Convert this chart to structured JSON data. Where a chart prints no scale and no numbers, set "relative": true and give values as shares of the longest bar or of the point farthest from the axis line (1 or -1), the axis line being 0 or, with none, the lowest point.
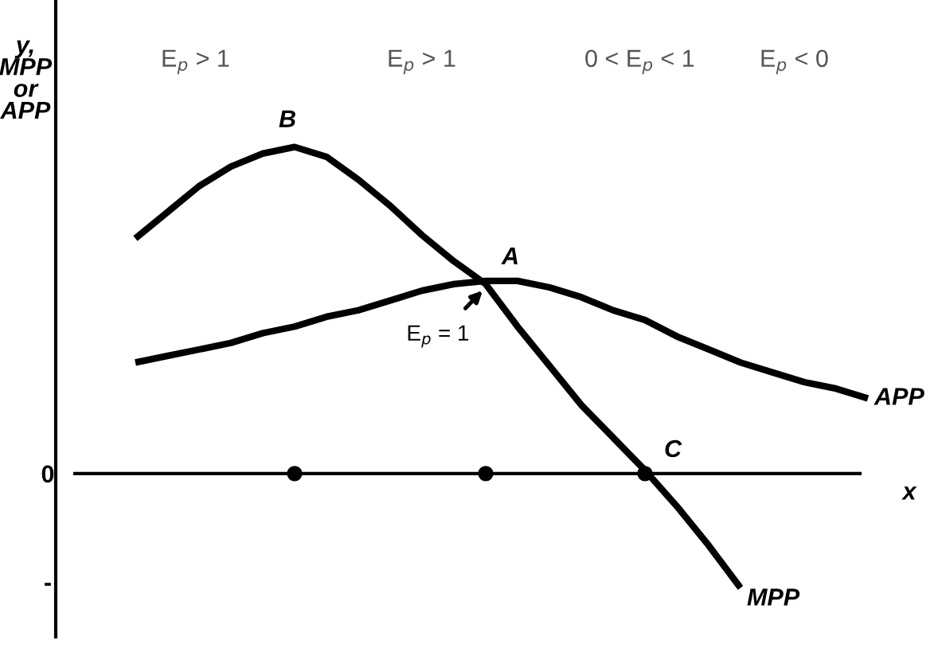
{
  "chart_data": {
    "type": "line",
    "relative": true,
    "xlabel": "x",
    "ylabel": "y,\nMPP\nor\nAPP",
    "legend": false,
    "categories": [
      null,
      null,
      null,
      null,
      null,
      null,
      null,
      null,
      null,
      null,
      null,
      null,
      null,
      null,
      null,
      null,
      null,
      null,
      null,
      null,
      null,
      null,
      null,
      null
    ],
    "series": [
      {
        "name": "MPP",
        "color": "#000000",
        "values": [
          0.72,
          0.8,
          0.88,
          0.94,
          0.98,
          1,
          0.97,
          0.9,
          0.82,
          0.73,
          0.65,
          0.58,
          0.45,
          0.33,
          0.21,
          0.11,
          0.01,
          -0.1,
          -0.22,
          -0.35,
          null,
          null,
          null,
          null
        ]
      },
      {
        "name": "APP",
        "color": "#000000",
        "values": [
          0.34,
          0.36,
          0.38,
          0.4,
          0.43,
          0.45,
          0.48,
          0.5,
          0.53,
          0.56,
          0.58,
          0.59,
          0.59,
          0.57,
          0.54,
          0.5,
          0.47,
          0.42,
          0.38,
          0.34,
          0.31,
          0.28,
          0.26,
          0.23
        ]
      },
      {
        "color": "#000000",
        "marker": "circle",
        "values": [
          null,
          null,
          null,
          null,
          null,
          0,
          null,
          null,
          null,
          null,
          null,
          0,
          null,
          null,
          null,
          null,
          0,
          null,
          null,
          null,
          null,
          null,
          null,
          null
        ]
      }
    ],
    "annotations": [
      "0",
      "-",
      "B",
      "A",
      "C",
      "E$_{p}$ > 1",
      "E$_{p}$ > 1",
      "0 < E$_{p}$ < 1",
      "E$_{p}$ < 0",
      "E$_{p}$ = 1"
    ]
  }
}
